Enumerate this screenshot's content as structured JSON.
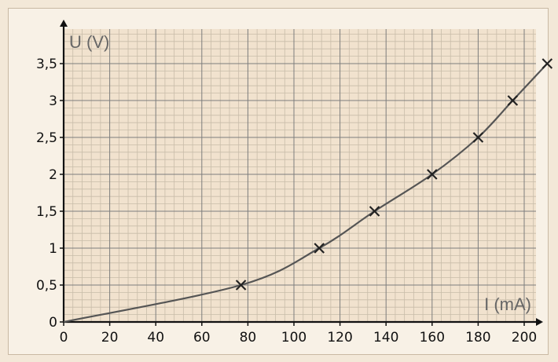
{
  "chart_data": {
    "type": "scatter",
    "title": "",
    "xlabel": "I (mA)",
    "ylabel": "U (V)",
    "xlim": [
      0,
      215
    ],
    "ylim": [
      0,
      3.75
    ],
    "grid": true,
    "x_ticks": [
      "0",
      "20",
      "40",
      "60",
      "80",
      "100",
      "120",
      "140",
      "160",
      "180",
      "200"
    ],
    "y_ticks": [
      "0",
      "0,5",
      "1",
      "1,5",
      "2",
      "2,5",
      "3",
      "3,5"
    ],
    "series": [
      {
        "marker": "x",
        "points": [
          {
            "x": 77,
            "y": 0.5
          },
          {
            "x": 111,
            "y": 1.0
          },
          {
            "x": 135,
            "y": 1.5
          },
          {
            "x": 160,
            "y": 2.0
          },
          {
            "x": 180,
            "y": 2.5
          },
          {
            "x": 195,
            "y": 3.0
          },
          {
            "x": 210,
            "y": 3.5
          }
        ]
      }
    ],
    "fit_curve": "smooth curve through origin and measured points",
    "colors": {
      "background": "#f3e8d8",
      "plot_background": "#f1e2ce",
      "major_grid": "#7d7d7d",
      "minor_grid": "#c8bca9",
      "curve": "#555555",
      "marker": "#222222",
      "axis": "#111111"
    }
  }
}
